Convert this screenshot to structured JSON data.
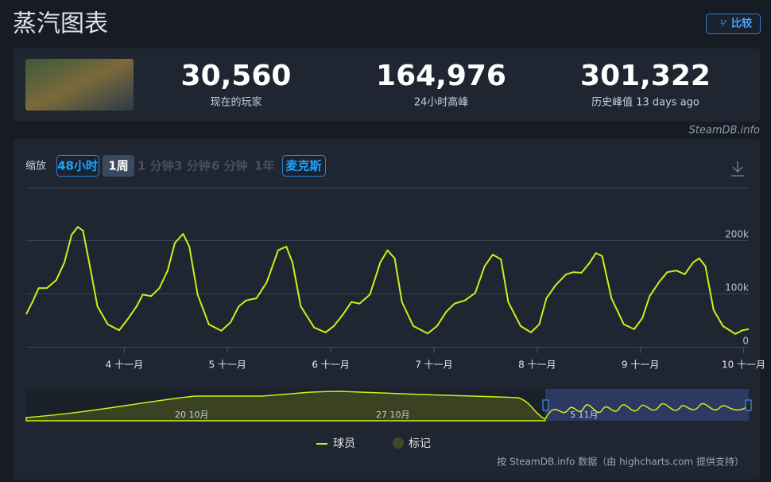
{
  "header": {
    "title": "蒸汽图表",
    "compare_button": "比较"
  },
  "stats": [
    {
      "value": "30,560",
      "label": "现在的玩家"
    },
    {
      "value": "164,976",
      "label": "24小时高峰"
    },
    {
      "value": "301,322",
      "label": "历史峰值 13 days ago"
    }
  ],
  "credit": "SteamDB.info",
  "toolbar": {
    "zoom_label": "缩放",
    "buttons": [
      "48小时",
      "1周",
      "1 分钟",
      "3 分钟",
      "6 分钟",
      "1年",
      "麦克斯"
    ]
  },
  "navigator": {
    "labels": [
      "20 10月",
      "27 10月",
      "5 11月"
    ]
  },
  "footer": "按 SteamDB.info 数据（由 highcharts.com 提供支持）",
  "chart_data": {
    "type": "line",
    "x": [
      3.05,
      3.11,
      3.17,
      3.25,
      3.34,
      3.42,
      3.49,
      3.55,
      3.6,
      3.66,
      3.74,
      3.84,
      3.95,
      4.03,
      4.12,
      4.18,
      4.26,
      4.34,
      4.42,
      4.49,
      4.57,
      4.63,
      4.71,
      4.82,
      4.94,
      5.03,
      5.11,
      5.18,
      5.28,
      5.38,
      5.49,
      5.57,
      5.63,
      5.71,
      5.84,
      5.95,
      6.03,
      6.12,
      6.2,
      6.28,
      6.38,
      6.48,
      6.55,
      6.62,
      6.69,
      6.8,
      6.94,
      7.03,
      7.12,
      7.2,
      7.3,
      7.4,
      7.49,
      7.57,
      7.65,
      7.72,
      7.84,
      7.94,
      8.02,
      8.09,
      8.18,
      8.28,
      8.35,
      8.43,
      8.51,
      8.57,
      8.63,
      8.72,
      8.84,
      8.94,
      9.02,
      9.09,
      9.18,
      9.26,
      9.35,
      9.43,
      9.51,
      9.57,
      9.63,
      9.71,
      9.8,
      9.92,
      9.99,
      10.05
    ],
    "series": [
      {
        "name": "球员",
        "color": "#c9f21a",
        "values": [
          61000,
          84000,
          110000,
          110000,
          125000,
          158000,
          210000,
          225000,
          218000,
          158000,
          76000,
          42000,
          31000,
          51000,
          76000,
          98000,
          95000,
          110000,
          143000,
          195000,
          212000,
          188000,
          98000,
          42000,
          30000,
          46000,
          76000,
          87000,
          91000,
          121000,
          181000,
          188000,
          158000,
          76000,
          36000,
          27000,
          39000,
          61000,
          84000,
          81000,
          98000,
          158000,
          181000,
          166000,
          84000,
          39000,
          25000,
          39000,
          66000,
          81000,
          87000,
          101000,
          151000,
          173000,
          164000,
          84000,
          39000,
          27000,
          42000,
          91000,
          116000,
          136000,
          140000,
          139000,
          158000,
          176000,
          170000,
          91000,
          42000,
          33000,
          54000,
          95000,
          121000,
          140000,
          143000,
          136000,
          158000,
          166000,
          151000,
          69000,
          39000,
          24000,
          31000,
          33000
        ]
      }
    ],
    "flags_label": "标记",
    "xlim": [
      3.05,
      10.05
    ],
    "xticks": [
      {
        "value": 4,
        "label": "4 十一月"
      },
      {
        "value": 5,
        "label": "5 十一月"
      },
      {
        "value": 6,
        "label": "6 十一月"
      },
      {
        "value": 7,
        "label": "7 十一月"
      },
      {
        "value": 8,
        "label": "8 十一月"
      },
      {
        "value": 9,
        "label": "9 十一月"
      },
      {
        "value": 10,
        "label": "10 十一月"
      }
    ],
    "ylim": [
      0,
      280000
    ],
    "yticks": [
      0,
      {
        "value": 100000,
        "label": "100k"
      },
      {
        "value": 200000,
        "label": "200k"
      }
    ],
    "grid": true
  }
}
